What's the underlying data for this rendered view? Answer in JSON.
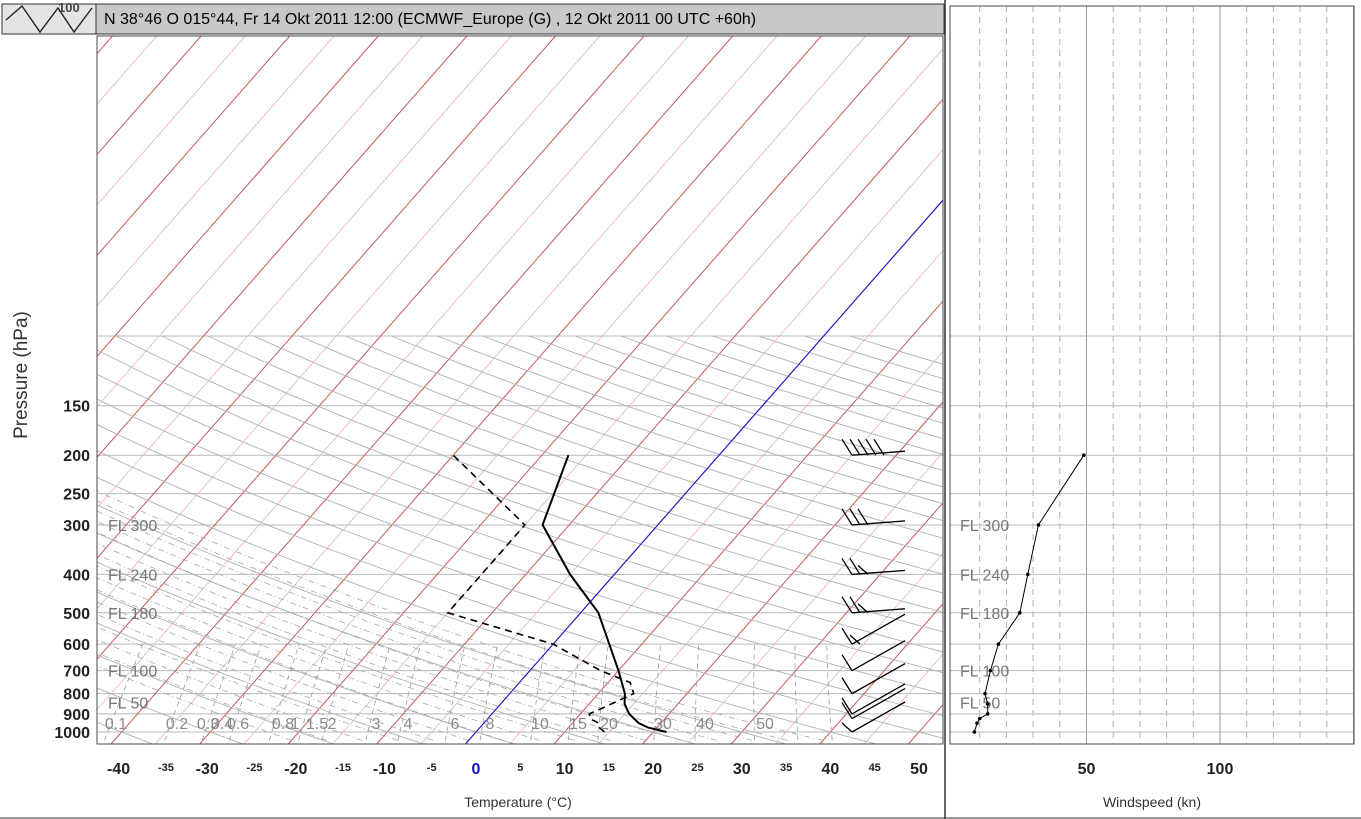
{
  "header": {
    "title": "N 38°46 O 015°44, Fr 14 Okt 2011 12:00 (ECMWF_Europe (G) , 12 Okt 2011 00 UTC +60h)",
    "corner_tick": "100"
  },
  "axes": {
    "ylabel": "Pressure (hPa)",
    "xlabel": "Temperature (°C)",
    "wind_xlabel": "Windspeed (kn)"
  },
  "chart_data": [
    {
      "type": "skew-t",
      "title": "N 38°46 O 015°44, Fr 14 Okt 2011 12:00 (ECMWF_Europe (G) , 12 Okt 2011 00 UTC +60h)",
      "xlabel": "Temperature (°C)",
      "ylabel": "Pressure (hPa)",
      "y_scale": "log",
      "ylim": [
        1000,
        100
      ],
      "pressure_ticks": [
        1000,
        900,
        800,
        700,
        600,
        500,
        400,
        300,
        250,
        200,
        150
      ],
      "temperature_major_ticks": [
        -40,
        -30,
        -20,
        -10,
        0,
        10,
        20,
        30,
        40,
        50
      ],
      "temperature_minor_ticks": [
        -35,
        -25,
        -15,
        -5,
        5,
        15,
        25,
        35,
        45
      ],
      "flight_levels": [
        {
          "label": "FL 300",
          "pressure": 300
        },
        {
          "label": "FL 240",
          "pressure": 400
        },
        {
          "label": "FL 180",
          "pressure": 500
        },
        {
          "label": "FL 100",
          "pressure": 700
        },
        {
          "label": "FL 50",
          "pressure": 842
        }
      ],
      "mixing_ratio_labels": [
        "0.1",
        "0.2",
        "0.3",
        "0.4",
        "0.6",
        "0.8",
        "1",
        "1.5",
        "2",
        "3",
        "4",
        "6",
        "8",
        "10",
        "15",
        "20",
        "30",
        "40",
        "50"
      ],
      "series": [
        {
          "role": "temperature",
          "line": "solid",
          "pressure": [
            1000,
            975,
            950,
            925,
            900,
            850,
            800,
            700,
            500,
            400,
            300,
            200
          ],
          "values": [
            21.5,
            19,
            17.5,
            16.5,
            15.5,
            14,
            13,
            10,
            2,
            -5,
            -13,
            -17
          ]
        },
        {
          "role": "dewpoint",
          "line": "dashed",
          "pressure": [
            1000,
            975,
            950,
            925,
            900,
            850,
            800,
            750,
            700,
            600,
            500,
            400,
            300,
            200
          ],
          "values": [
            14.5,
            13.5,
            13,
            11.5,
            11,
            12.5,
            14,
            12.5,
            8,
            0,
            -15,
            -15,
            -15,
            -30
          ]
        }
      ],
      "wind_barbs": [
        {
          "pressure": 200,
          "flags": "50"
        },
        {
          "pressure": 300,
          "flags": "30"
        },
        {
          "pressure": 400,
          "flags": "25"
        },
        {
          "pressure": 500,
          "flags": "25"
        },
        {
          "pressure": 600,
          "flags": "15"
        },
        {
          "pressure": 700,
          "flags": "10"
        },
        {
          "pressure": 800,
          "flags": "10"
        },
        {
          "pressure": 900,
          "flags": "10"
        },
        {
          "pressure": 925,
          "flags": "10"
        },
        {
          "pressure": 1000,
          "flags": "5"
        }
      ],
      "highlight_line": {
        "type": "isotherm",
        "value": 0,
        "color": "#1a1ad0"
      }
    },
    {
      "type": "line",
      "xlabel": "Windspeed (kn)",
      "ylabel": "Pressure (hPa)",
      "x_ticks": [
        50,
        100
      ],
      "xlim": [
        0,
        145
      ],
      "y_scale": "log",
      "ylim": [
        1000,
        100
      ],
      "series": [
        {
          "role": "windspeed",
          "pressure": [
            1000,
            950,
            925,
            900,
            850,
            800,
            700,
            600,
            500,
            400,
            300,
            200
          ],
          "values": [
            8,
            9,
            10,
            13,
            13,
            12,
            14,
            17,
            25,
            28,
            32,
            49
          ]
        }
      ]
    }
  ],
  "colors": {
    "isotherm_red": "#c55a5a",
    "isotherm_red_light": "#e6b3b3",
    "adiabat_gray": "#b0b0b0",
    "mixing_dash": "#9a9a9a",
    "zero_isotherm": "#1a1ad0",
    "title_bar_bg": "#c8c8c8",
    "frame": "#4a4a4a"
  }
}
